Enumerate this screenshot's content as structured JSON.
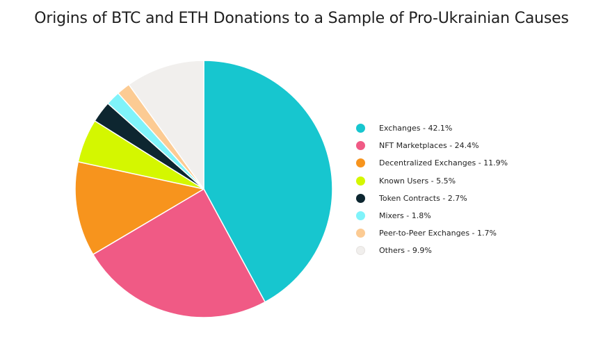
{
  "chart_data": {
    "type": "pie",
    "title": "Origins of BTC and ETH Donations to a Sample of Pro-Ukrainian Causes",
    "legend_position": "right",
    "slices": [
      {
        "label": "Exchanges - 42.1%",
        "value": 42.1,
        "color": "#17c6cf"
      },
      {
        "label": "NFT Marketplaces - 24.4%",
        "value": 24.4,
        "color": "#f05a85"
      },
      {
        "label": "Decentralized Exchanges - 11.9%",
        "value": 11.9,
        "color": "#f7941d"
      },
      {
        "label": "Known Users - 5.5%",
        "value": 5.5,
        "color": "#d4f700"
      },
      {
        "label": "Token Contracts - 2.7%",
        "value": 2.7,
        "color": "#0d2630"
      },
      {
        "label": "Mixers - 1.8%",
        "value": 1.8,
        "color": "#7ff3fa"
      },
      {
        "label": "Peer-to-Peer Exchanges - 1.7%",
        "value": 1.7,
        "color": "#fccb93"
      },
      {
        "label": "Others - 9.9%",
        "value": 9.9,
        "color": "#f1efed"
      }
    ]
  }
}
